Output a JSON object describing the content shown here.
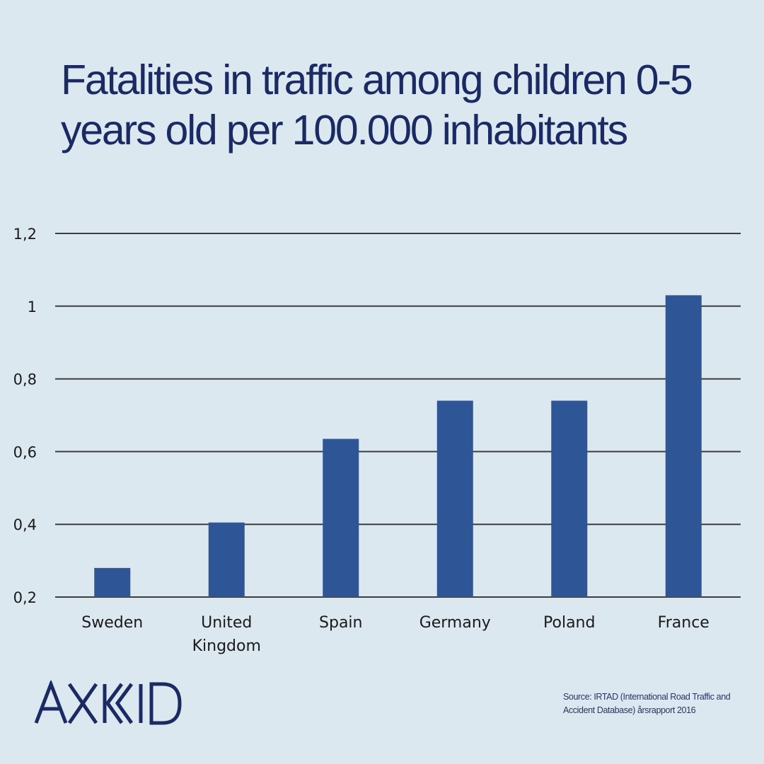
{
  "header": {
    "title": "Fatalities in traffic among children 0-5 years old per 100.000 inhabitants"
  },
  "brand": {
    "logo_text": "AXKID",
    "color": "#1c2a63"
  },
  "footer": {
    "source": "Source: IRTAD (International Road Traffic and Accident Database) årsrapport 2016"
  },
  "colors": {
    "background": "#dce8f0",
    "bar": "#2e5596",
    "gridline": "#3d3d3d",
    "title": "#1c2a63"
  },
  "chart_data": {
    "type": "bar",
    "title": "Fatalities in traffic among children 0-5 years old per 100.000 inhabitants",
    "xlabel": "",
    "ylabel": "",
    "categories": [
      "Sweden",
      "United Kingdom",
      "Spain",
      "Germany",
      "Poland",
      "France"
    ],
    "category_labels": [
      [
        "Sweden"
      ],
      [
        "United",
        "Kingdom"
      ],
      [
        "Spain"
      ],
      [
        "Germany"
      ],
      [
        "Poland"
      ],
      [
        "France"
      ]
    ],
    "values": [
      0.28,
      0.405,
      0.635,
      0.74,
      0.74,
      1.03
    ],
    "ylim": [
      0.2,
      1.2
    ],
    "yticks": [
      0.2,
      0.4,
      0.6,
      0.8,
      1,
      1.2
    ],
    "ytick_labels": [
      "0,2",
      "0,4",
      "0,6",
      "0,8",
      "1",
      "1,2"
    ],
    "grid": true,
    "legend": "none"
  }
}
